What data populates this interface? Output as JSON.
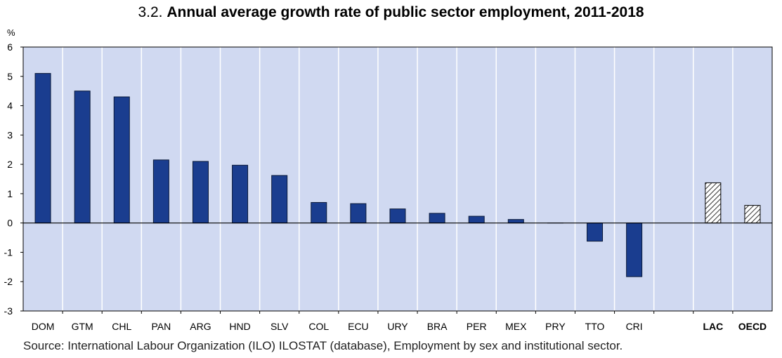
{
  "header": {
    "number": "3.2.",
    "title": "Annual average growth rate of public sector employment, 2011-2018"
  },
  "source": "Source: International Labour Organization (ILO) ILOSTAT (database), Employment by sex and institutional sector.",
  "chart_data": {
    "type": "bar",
    "title": "Annual average growth rate of public sector employment, 2011-2018",
    "ylabel": "%",
    "ylim": [
      -3,
      6
    ],
    "yticks": [
      6,
      5,
      4,
      3,
      2,
      1,
      0,
      -1,
      -2,
      -3
    ],
    "grid": "vertical category separators",
    "categories": [
      "DOM",
      "GTM",
      "CHL",
      "PAN",
      "ARG",
      "HND",
      "SLV",
      "COL",
      "ECU",
      "URY",
      "BRA",
      "PER",
      "MEX",
      "PRY",
      "TTO",
      "CRI",
      "",
      "LAC",
      "OECD"
    ],
    "values": [
      5.1,
      4.5,
      4.3,
      2.15,
      2.1,
      1.97,
      1.62,
      0.7,
      0.66,
      0.48,
      0.33,
      0.23,
      0.12,
      0.0,
      -0.62,
      -1.83,
      null,
      1.37,
      0.6
    ],
    "aggregates": [
      "LAC",
      "OECD"
    ],
    "colors": {
      "bar": "#1a3d8f",
      "bar_stroke": "#0a1a3a",
      "aggregate_fill": "#ffffff",
      "aggregate_hatch": "#333333",
      "plot_background": "#d0d9f1",
      "gridline": "#ffffff",
      "axis": "#000000"
    }
  }
}
